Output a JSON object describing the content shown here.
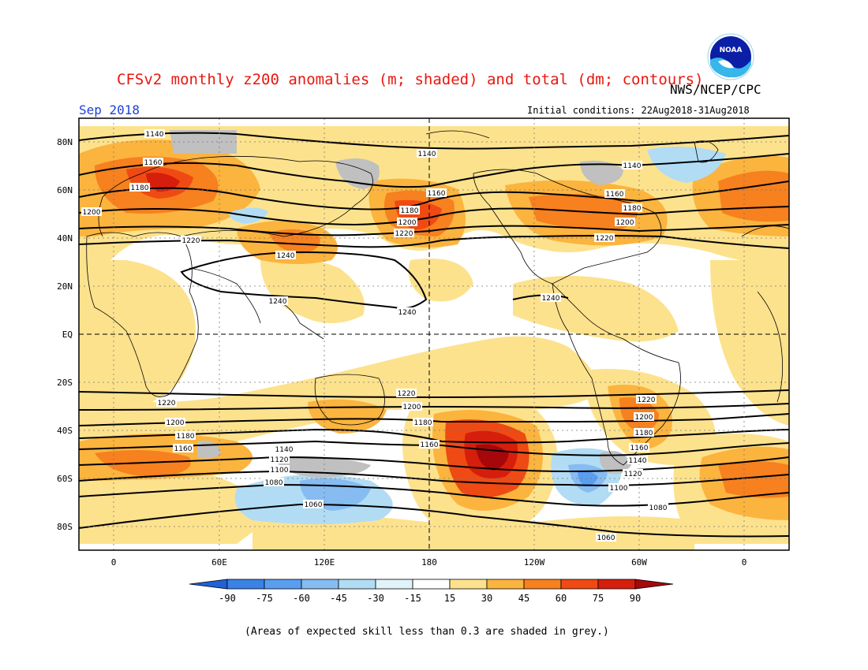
{
  "header": {
    "title": "CFSv2 monthly z200 anomalies (m; shaded) and total (dm; contours)",
    "agency": "NWS/NCEP/CPC",
    "period": "Sep 2018",
    "initial_conditions": "Initial conditions: 22Aug2018-31Aug2018",
    "logo_text": "NOAA"
  },
  "axes": {
    "lat_labels": [
      "80N",
      "60N",
      "40N",
      "20N",
      "EQ",
      "20S",
      "40S",
      "60S",
      "80S"
    ],
    "lon_labels": [
      "0",
      "60E",
      "120E",
      "180",
      "120W",
      "60W",
      "0"
    ]
  },
  "contour_labels": {
    "north": [
      "1140",
      "1160",
      "1180",
      "1200",
      "1220",
      "1240"
    ],
    "south": [
      "1220",
      "1200",
      "1180",
      "1160",
      "1140",
      "1120",
      "1100",
      "1080",
      "1060"
    ]
  },
  "colorbar": {
    "ticks": [
      "-90",
      "-75",
      "-60",
      "-45",
      "-30",
      "-15",
      "15",
      "30",
      "45",
      "60",
      "75",
      "90"
    ],
    "colors": [
      "#1f62d6",
      "#3b82e6",
      "#5a9ef0",
      "#86bcf2",
      "#b1dcf4",
      "#dff3f8",
      "#ffffff",
      "#fde28d",
      "#fbb43e",
      "#f7801f",
      "#ef4a14",
      "#d61e0c",
      "#a6070a"
    ]
  },
  "footnote": "(Areas of expected skill less than 0.3 are shaded in grey.)"
}
